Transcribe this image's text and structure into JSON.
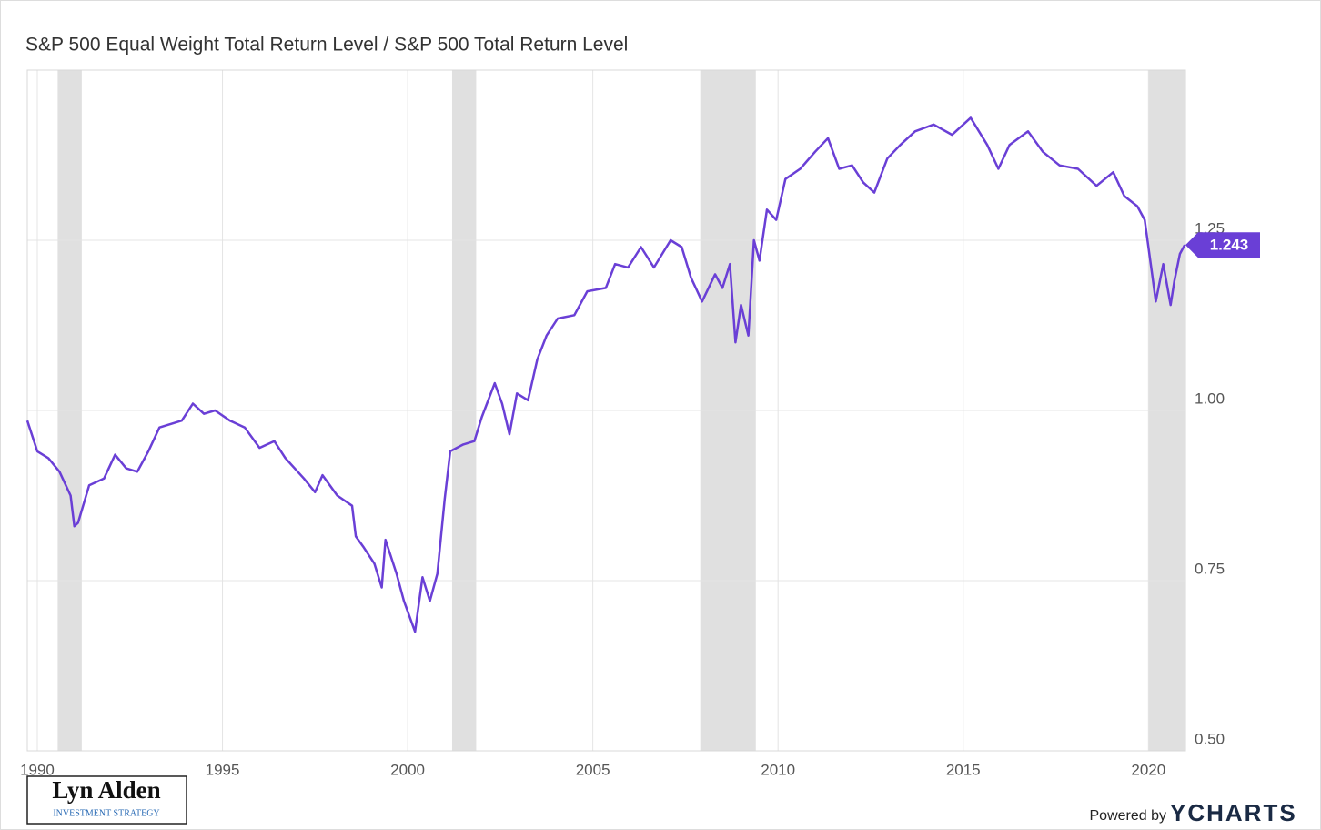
{
  "chart_data": {
    "type": "line",
    "title": "S&P 500 Equal Weight Total Return Level / S&P 500 Total Return Level",
    "series": [
      {
        "name": "S&P 500 Equal Weight Total Return Level / S&P 500 Total Return Level",
        "color": "#6a3fd6",
        "x": [
          1989.73,
          1990.0,
          1990.3,
          1990.6,
          1990.9,
          1991.0,
          1991.1,
          1991.4,
          1991.8,
          1992.1,
          1992.4,
          1992.7,
          1993.0,
          1993.3,
          1993.9,
          1994.2,
          1994.5,
          1994.8,
          1995.2,
          1995.6,
          1996.0,
          1996.4,
          1996.7,
          1997.2,
          1997.5,
          1997.7,
          1998.1,
          1998.5,
          1998.6,
          1998.8,
          1999.1,
          1999.3,
          1999.4,
          1999.7,
          1999.9,
          2000.2,
          2000.4,
          2000.6,
          2000.8,
          2001.0,
          2001.15,
          2001.5,
          2001.8,
          2002.0,
          2002.35,
          2002.55,
          2002.75,
          2002.95,
          2003.25,
          2003.5,
          2003.75,
          2004.05,
          2004.5,
          2004.85,
          2005.35,
          2005.6,
          2005.95,
          2006.3,
          2006.65,
          2007.1,
          2007.4,
          2007.65,
          2007.95,
          2008.3,
          2008.5,
          2008.7,
          2008.85,
          2009.0,
          2009.2,
          2009.35,
          2009.5,
          2009.7,
          2009.95,
          2010.2,
          2010.6,
          2011.0,
          2011.35,
          2011.65,
          2012.0,
          2012.3,
          2012.6,
          2012.95,
          2013.3,
          2013.7,
          2014.2,
          2014.7,
          2015.2,
          2015.65,
          2015.95,
          2016.25,
          2016.75,
          2017.15,
          2017.6,
          2018.1,
          2018.6,
          2019.05,
          2019.35,
          2019.7,
          2019.9,
          2020.1,
          2020.2,
          2020.4,
          2020.6,
          2020.7,
          2020.85,
          2020.98
        ],
        "values": [
          0.985,
          0.94,
          0.93,
          0.91,
          0.875,
          0.83,
          0.835,
          0.89,
          0.9,
          0.935,
          0.915,
          0.91,
          0.94,
          0.975,
          0.985,
          1.01,
          0.995,
          1.0,
          0.985,
          0.975,
          0.945,
          0.955,
          0.93,
          0.9,
          0.88,
          0.905,
          0.875,
          0.86,
          0.815,
          0.8,
          0.775,
          0.74,
          0.81,
          0.76,
          0.72,
          0.675,
          0.755,
          0.72,
          0.76,
          0.87,
          0.94,
          0.95,
          0.955,
          0.99,
          1.04,
          1.01,
          0.965,
          1.025,
          1.015,
          1.075,
          1.11,
          1.135,
          1.14,
          1.175,
          1.18,
          1.215,
          1.21,
          1.24,
          1.21,
          1.25,
          1.24,
          1.195,
          1.16,
          1.2,
          1.18,
          1.215,
          1.1,
          1.155,
          1.11,
          1.25,
          1.22,
          1.295,
          1.28,
          1.34,
          1.355,
          1.38,
          1.4,
          1.355,
          1.36,
          1.335,
          1.32,
          1.37,
          1.39,
          1.41,
          1.42,
          1.405,
          1.43,
          1.39,
          1.355,
          1.39,
          1.41,
          1.38,
          1.36,
          1.355,
          1.33,
          1.35,
          1.315,
          1.3,
          1.28,
          1.2,
          1.16,
          1.215,
          1.155,
          1.19,
          1.23,
          1.243
        ]
      }
    ],
    "recessions": [
      [
        1990.55,
        1991.2
      ],
      [
        2001.2,
        2001.85
      ],
      [
        2007.9,
        2009.4
      ],
      [
        2020.0,
        2021.0
      ]
    ],
    "xlim": [
      1989.73,
      2021.0
    ],
    "xticks": [
      1990,
      1995,
      2000,
      2005,
      2010,
      2015,
      2020
    ],
    "ylim": [
      0.5,
      1.5
    ],
    "yticks": [
      {
        "value": 0.5,
        "label": "0.50"
      },
      {
        "value": 0.75,
        "label": "0.75"
      },
      {
        "value": 1.0,
        "label": "1.00"
      },
      {
        "value": 1.25,
        "label": "1.25"
      }
    ],
    "grid": true
  },
  "watermark": {
    "name": "Lyn Alden",
    "tagline": "INVESTMENT STRATEGY"
  },
  "credit": {
    "prefix": "Powered by",
    "brand": "YCHARTS"
  }
}
